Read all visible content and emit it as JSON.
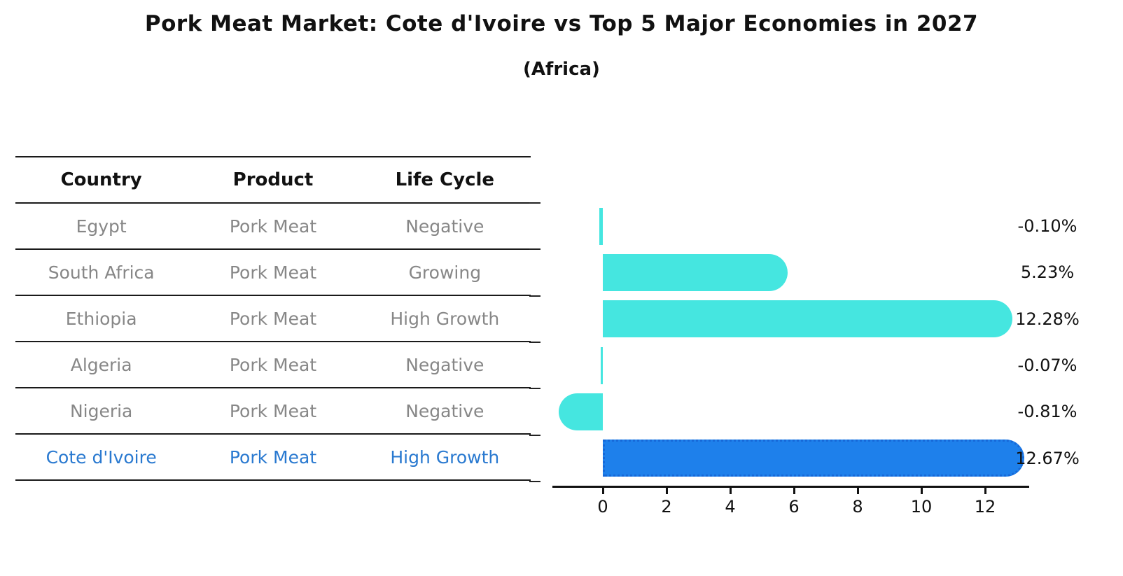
{
  "title": "Pork Meat Market: Cote d'Ivoire vs Top 5 Major Economies in 2027",
  "subtitle": "(Africa)",
  "table": {
    "headers": [
      "Country",
      "Product",
      "Life Cycle"
    ],
    "rows": [
      {
        "country": "Egypt",
        "product": "Pork Meat",
        "life_cycle": "Negative",
        "highlight": false
      },
      {
        "country": "South Africa",
        "product": "Pork Meat",
        "life_cycle": "Growing",
        "highlight": false
      },
      {
        "country": "Ethiopia",
        "product": "Pork Meat",
        "life_cycle": "High Growth",
        "highlight": false
      },
      {
        "country": "Algeria",
        "product": "Pork Meat",
        "life_cycle": "Negative",
        "highlight": false
      },
      {
        "country": "Nigeria",
        "product": "Pork Meat",
        "life_cycle": "Negative",
        "highlight": false
      },
      {
        "country": "Cote d'Ivoire",
        "product": "Pork Meat",
        "life_cycle": "High Growth",
        "highlight": true
      }
    ]
  },
  "chart_data": {
    "type": "bar",
    "orientation": "horizontal",
    "categories": [
      "Egypt",
      "South Africa",
      "Ethiopia",
      "Algeria",
      "Nigeria",
      "Cote d'Ivoire"
    ],
    "values": [
      -0.1,
      5.23,
      12.28,
      -0.07,
      -0.81,
      12.67
    ],
    "value_labels": [
      "-0.10%",
      "5.23%",
      "12.28%",
      "-0.07%",
      "-0.81%",
      "12.67%"
    ],
    "x_ticks": [
      0,
      2,
      4,
      6,
      8,
      10,
      12
    ],
    "xlim": [
      -1.6,
      13.4
    ],
    "grid": false,
    "legend": "none",
    "highlight_index": 5,
    "colors": {
      "bar": "#45E6E0",
      "highlight_bar": "#1E80EB",
      "highlight_border": "#1668D8",
      "highlight_text": "#2979D0",
      "row_text": "#878787",
      "axis": "#111111"
    }
  }
}
